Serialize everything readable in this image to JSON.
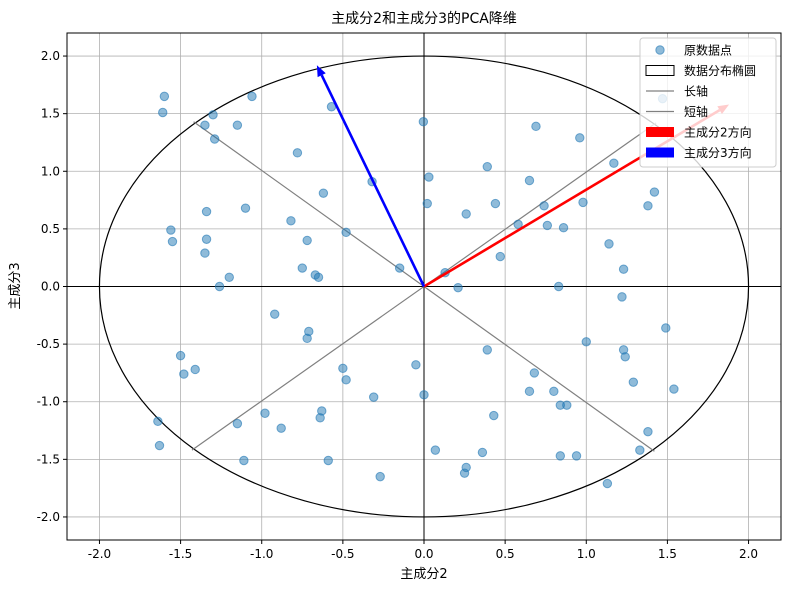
{
  "chart_data": {
    "type": "scatter",
    "title": "主成分2和主成分3的PCA降维",
    "xlabel": "主成分2",
    "ylabel": "主成分3",
    "xlim": [
      -2.2,
      2.2
    ],
    "ylim": [
      -2.2,
      2.2
    ],
    "grid": true,
    "legend_position": "top-right",
    "xticks": [
      -2.0,
      -1.5,
      -1.0,
      -0.5,
      0.0,
      0.5,
      1.0,
      1.5,
      2.0
    ],
    "yticks": [
      -2.0,
      -1.5,
      -1.0,
      -0.5,
      0.0,
      0.5,
      1.0,
      1.5,
      2.0
    ],
    "xtick_labels": [
      "-2.0",
      "-1.5",
      "-1.0",
      "-0.5",
      "0.0",
      "0.5",
      "1.0",
      "1.5",
      "2.0"
    ],
    "ytick_labels": [
      "-2.0",
      "-1.5",
      "-1.0",
      "-0.5",
      "0.0",
      "0.5",
      "1.0",
      "1.5",
      "2.0"
    ],
    "series": [
      {
        "name": "原数据点",
        "color": "#1f77b4",
        "points": [
          [
            -1.6,
            1.65
          ],
          [
            -1.61,
            1.51
          ],
          [
            -1.3,
            1.49
          ],
          [
            -1.35,
            1.4
          ],
          [
            -1.15,
            1.4
          ],
          [
            -1.06,
            1.65
          ],
          [
            -1.29,
            1.28
          ],
          [
            -0.78,
            1.16
          ],
          [
            -0.57,
            1.56
          ],
          [
            -0.004,
            1.43
          ],
          [
            -0.62,
            0.81
          ],
          [
            -0.32,
            0.91
          ],
          [
            -0.82,
            0.57
          ],
          [
            -1.1,
            0.68
          ],
          [
            -1.34,
            0.65
          ],
          [
            -1.56,
            0.49
          ],
          [
            -1.55,
            0.39
          ],
          [
            -1.34,
            0.41
          ],
          [
            -1.35,
            0.29
          ],
          [
            -0.72,
            0.4
          ],
          [
            -0.48,
            0.47
          ],
          [
            -1.2,
            0.08
          ],
          [
            -1.26,
            0.0
          ],
          [
            -0.75,
            0.16
          ],
          [
            -0.67,
            0.1
          ],
          [
            -0.65,
            0.08
          ],
          [
            -0.15,
            0.16
          ],
          [
            0.03,
            0.95
          ],
          [
            0.02,
            0.72
          ],
          [
            0.26,
            0.63
          ],
          [
            0.39,
            1.04
          ],
          [
            0.44,
            0.72
          ],
          [
            0.65,
            0.92
          ],
          [
            0.69,
            1.39
          ],
          [
            0.58,
            0.54
          ],
          [
            0.74,
            0.7
          ],
          [
            0.76,
            0.53
          ],
          [
            0.86,
            0.51
          ],
          [
            0.96,
            1.29
          ],
          [
            0.98,
            0.73
          ],
          [
            1.17,
            1.07
          ],
          [
            1.47,
            1.63
          ],
          [
            1.42,
            0.82
          ],
          [
            1.38,
            0.7
          ],
          [
            1.14,
            0.37
          ],
          [
            1.23,
            0.15
          ],
          [
            1.22,
            -0.09
          ],
          [
            0.13,
            0.12
          ],
          [
            0.47,
            0.26
          ],
          [
            0.21,
            -0.01
          ],
          [
            0.83,
            0.0
          ],
          [
            -0.92,
            -0.24
          ],
          [
            -0.71,
            -0.39
          ],
          [
            -0.72,
            -0.45
          ],
          [
            -1.5,
            -0.6
          ],
          [
            -1.48,
            -0.76
          ],
          [
            -1.41,
            -0.72
          ],
          [
            -0.5,
            -0.71
          ],
          [
            -0.48,
            -0.81
          ],
          [
            -0.31,
            -0.96
          ],
          [
            -0.05,
            -0.68
          ],
          [
            0.39,
            -0.55
          ],
          [
            0.68,
            -0.75
          ],
          [
            0.65,
            -0.91
          ],
          [
            0.8,
            -0.91
          ],
          [
            0.84,
            -1.03
          ],
          [
            0.88,
            -1.03
          ],
          [
            1.0,
            -0.48
          ],
          [
            1.23,
            -0.55
          ],
          [
            1.24,
            -0.61
          ],
          [
            1.29,
            -0.83
          ],
          [
            1.49,
            -0.36
          ],
          [
            1.54,
            -0.89
          ],
          [
            -0.98,
            -1.1
          ],
          [
            -1.15,
            -1.19
          ],
          [
            -0.88,
            -1.23
          ],
          [
            -0.63,
            -1.08
          ],
          [
            -0.64,
            -1.14
          ],
          [
            -1.64,
            -1.17
          ],
          [
            -1.63,
            -1.38
          ],
          [
            -1.11,
            -1.51
          ],
          [
            -0.59,
            -1.51
          ],
          [
            -0.27,
            -1.65
          ],
          [
            0.0,
            -0.94
          ],
          [
            0.07,
            -1.42
          ],
          [
            0.43,
            -1.12
          ],
          [
            0.36,
            -1.44
          ],
          [
            0.26,
            -1.57
          ],
          [
            0.25,
            -1.62
          ],
          [
            0.84,
            -1.47
          ],
          [
            0.94,
            -1.47
          ],
          [
            1.13,
            -1.71
          ],
          [
            1.33,
            -1.42
          ],
          [
            1.38,
            -1.26
          ]
        ]
      }
    ],
    "ellipse": {
      "name": "数据分布椭圆",
      "center": [
        0,
        0
      ],
      "semi_x": 2.0,
      "semi_y": 2.0,
      "color": "#000000"
    },
    "axes_lines": [
      {
        "name": "长轴",
        "from": [
          -1.43,
          -1.42
        ],
        "to": [
          1.43,
          1.42
        ],
        "color": "#808080"
      },
      {
        "name": "短轴",
        "from": [
          -1.42,
          1.43
        ],
        "to": [
          1.42,
          -1.43
        ],
        "color": "#808080"
      }
    ],
    "arrows": [
      {
        "name": "主成分2方向",
        "from": [
          0,
          0
        ],
        "to": [
          1.88,
          1.58
        ],
        "color": "#ff0000"
      },
      {
        "name": "主成分3方向",
        "from": [
          0,
          0
        ],
        "to": [
          -0.66,
          1.92
        ],
        "color": "#0000ff"
      }
    ],
    "legend": [
      {
        "label": "原数据点",
        "kind": "point",
        "color": "#1f77b4"
      },
      {
        "label": "数据分布椭圆",
        "kind": "patch-outline",
        "color": "#000000"
      },
      {
        "label": "长轴",
        "kind": "line",
        "color": "#808080"
      },
      {
        "label": "短轴",
        "kind": "line",
        "color": "#808080"
      },
      {
        "label": "主成分2方向",
        "kind": "patch",
        "color": "#ff0000"
      },
      {
        "label": "主成分3方向",
        "kind": "patch",
        "color": "#0000ff"
      }
    ]
  }
}
